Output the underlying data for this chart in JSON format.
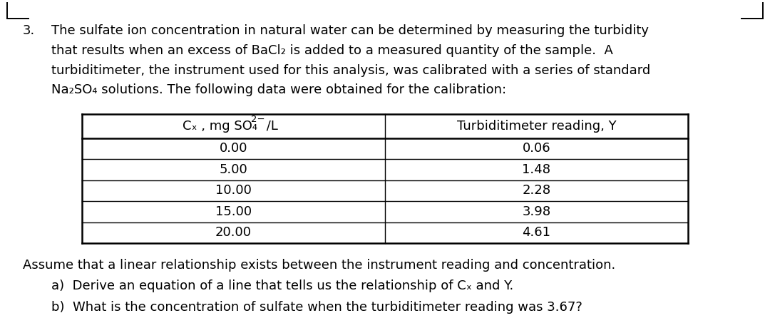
{
  "number": "3.",
  "para_lines": [
    "The sulfate ion concentration in natural water can be determined by measuring the turbidity",
    "that results when an excess of BaCl₂ is added to a measured quantity of the sample.  A",
    "turbiditimeter, the instrument used for this analysis, was calibrated with a series of standard",
    "Na₂SO₄ solutions. The following data were obtained for the calibration:"
  ],
  "col1_header_main": "Cₓ , mg SO₄",
  "col1_header_sup": "2−",
  "col1_header_end": " /L",
  "col2_header": "Turbiditimeter reading, Y",
  "table_data": [
    [
      "0.00",
      "0.06"
    ],
    [
      "5.00",
      "1.48"
    ],
    [
      "10.00",
      "2.28"
    ],
    [
      "15.00",
      "3.98"
    ],
    [
      "20.00",
      "4.61"
    ]
  ],
  "assume_text": "Assume that a linear relationship exists between the instrument reading and concentration.",
  "part_a": "a)  Derive an equation of a line that tells us the relationship of Cₓ and Y.",
  "part_b": "b)  What is the concentration of sulfate when the turbiditimeter reading was 3.67?",
  "background_color": "#ffffff",
  "text_color": "#000000",
  "font_size": 13.0,
  "table_font_size": 13.0,
  "sup_font_size": 9.5,
  "fig_width": 10.8,
  "fig_height": 4.46,
  "dpi": 100
}
